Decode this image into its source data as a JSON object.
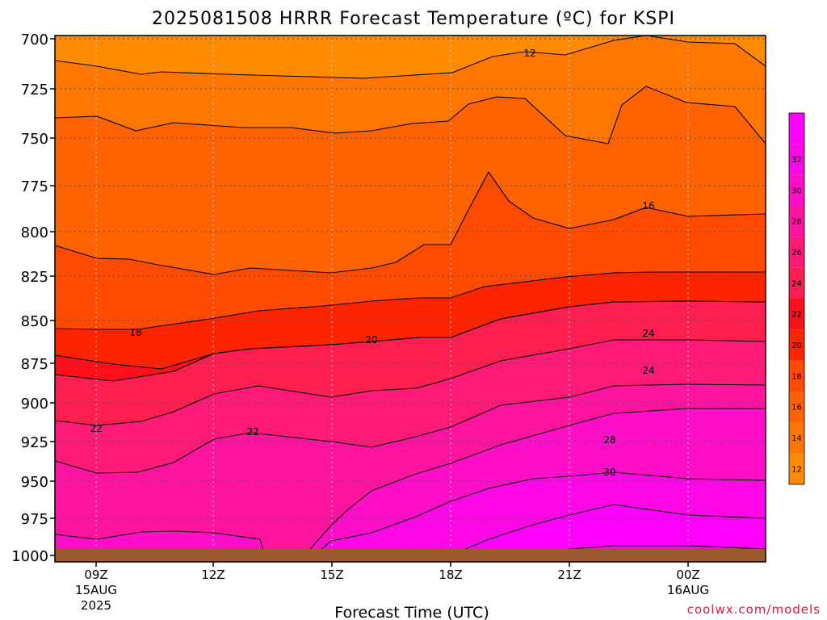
{
  "chart_data": {
    "type": "contour",
    "title": "2025081508 HRRR Forecast Temperature (ºC) for KSPI",
    "xlabel": "Forecast Time (UTC)",
    "ylabel": "",
    "credit": "coolwx.com/models",
    "y_axis": {
      "label": "",
      "ticks": [
        "700",
        "725",
        "750",
        "775",
        "800",
        "825",
        "850",
        "875",
        "900",
        "925",
        "950",
        "975",
        "1000"
      ],
      "range": [
        700,
        1000
      ]
    },
    "x_axis": {
      "ticks": [
        {
          "time": "09Z",
          "date": "15AUG",
          "year": "2025"
        },
        {
          "time": "12Z",
          "date": "",
          "year": ""
        },
        {
          "time": "15Z",
          "date": "",
          "year": ""
        },
        {
          "time": "18Z",
          "date": "",
          "year": ""
        },
        {
          "time": "21Z",
          "date": "",
          "year": ""
        },
        {
          "time": "00Z",
          "date": "16AUG",
          "year": ""
        }
      ]
    },
    "colorbar": {
      "levels": [
        12,
        14,
        16,
        18,
        20,
        22,
        24,
        26,
        28,
        30,
        32
      ],
      "colors": [
        "#ff8c00",
        "#ff7700",
        "#ff6200",
        "#ff4a00",
        "#ff2400",
        "#ff0f1a",
        "#ff1e50",
        "#ff1a78",
        "#ff14a0",
        "#ff0fc8",
        "#ff08e8",
        "#ff00ff"
      ]
    },
    "contour_labels": [
      "12",
      "16",
      "18",
      "20",
      "22",
      "22",
      "24",
      "24",
      "28",
      "30"
    ],
    "grid": true
  }
}
